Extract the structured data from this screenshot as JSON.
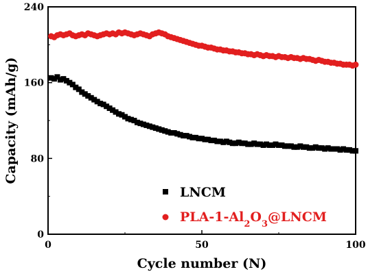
{
  "chart_data": {
    "type": "scatter",
    "xlabel": "Cycle number (N)",
    "ylabel": "Capacity (mAh/g)",
    "xlim": [
      0,
      100
    ],
    "ylim": [
      0,
      240
    ],
    "xticks": [
      "0",
      "50",
      "100"
    ],
    "yticks": [
      "0",
      "80",
      "160",
      "240"
    ],
    "grid": false,
    "legend_position": "bottom-right",
    "series": [
      {
        "name": "LNCM",
        "marker": "square",
        "color": "#000000",
        "x": [
          1,
          2,
          3,
          4,
          5,
          6,
          7,
          8,
          9,
          10,
          11,
          12,
          13,
          14,
          15,
          16,
          17,
          18,
          19,
          20,
          21,
          22,
          23,
          24,
          25,
          26,
          27,
          28,
          29,
          30,
          31,
          32,
          33,
          34,
          35,
          36,
          37,
          38,
          39,
          40,
          41,
          42,
          43,
          44,
          45,
          46,
          47,
          48,
          49,
          50,
          51,
          52,
          53,
          54,
          55,
          56,
          57,
          58,
          59,
          60,
          61,
          62,
          63,
          64,
          65,
          66,
          67,
          68,
          69,
          70,
          71,
          72,
          73,
          74,
          75,
          76,
          77,
          78,
          79,
          80,
          81,
          82,
          83,
          84,
          85,
          86,
          87,
          88,
          89,
          90,
          91,
          92,
          93,
          94,
          95,
          96,
          97,
          98,
          99,
          100
        ],
        "values": [
          165,
          164,
          166,
          163,
          164,
          162,
          160,
          158,
          155,
          153,
          150,
          148,
          146,
          144,
          142,
          140,
          138,
          137,
          135,
          133,
          131,
          129,
          127,
          126,
          124,
          122,
          121,
          120,
          118,
          117,
          116,
          115,
          114,
          113,
          112,
          111,
          110,
          109,
          108,
          107,
          107,
          106,
          105,
          104,
          104,
          103,
          102,
          102,
          101,
          101,
          100,
          100,
          99,
          99,
          98,
          98,
          97,
          98,
          97,
          96,
          96,
          97,
          96,
          96,
          95,
          95,
          96,
          95,
          95,
          94,
          95,
          94,
          94,
          95,
          94,
          94,
          93,
          93,
          93,
          92,
          92,
          93,
          92,
          92,
          91,
          91,
          92,
          91,
          91,
          90,
          91,
          90,
          90,
          90,
          89,
          90,
          89,
          89,
          88,
          88
        ]
      },
      {
        "name": "PLA-1-Al2O3@LNCM",
        "marker": "circle",
        "color": "#e21f1f",
        "x": [
          1,
          2,
          3,
          4,
          5,
          6,
          7,
          8,
          9,
          10,
          11,
          12,
          13,
          14,
          15,
          16,
          17,
          18,
          19,
          20,
          21,
          22,
          23,
          24,
          25,
          26,
          27,
          28,
          29,
          30,
          31,
          32,
          33,
          34,
          35,
          36,
          37,
          38,
          39,
          40,
          41,
          42,
          43,
          44,
          45,
          46,
          47,
          48,
          49,
          50,
          51,
          52,
          53,
          54,
          55,
          56,
          57,
          58,
          59,
          60,
          61,
          62,
          63,
          64,
          65,
          66,
          67,
          68,
          69,
          70,
          71,
          72,
          73,
          74,
          75,
          76,
          77,
          78,
          79,
          80,
          81,
          82,
          83,
          84,
          85,
          86,
          87,
          88,
          89,
          90,
          91,
          92,
          93,
          94,
          95,
          96,
          97,
          98,
          99,
          100
        ],
        "values": [
          209,
          208,
          210,
          211,
          210,
          211,
          212,
          210,
          209,
          210,
          211,
          210,
          212,
          211,
          210,
          209,
          210,
          211,
          212,
          211,
          212,
          211,
          213,
          212,
          213,
          212,
          211,
          210,
          211,
          212,
          211,
          210,
          209,
          211,
          212,
          213,
          212,
          211,
          209,
          208,
          207,
          206,
          205,
          204,
          203,
          202,
          201,
          200,
          199,
          199,
          198,
          197,
          197,
          196,
          195,
          195,
          194,
          194,
          193,
          193,
          192,
          192,
          191,
          191,
          190,
          190,
          189,
          190,
          189,
          188,
          189,
          188,
          188,
          187,
          188,
          187,
          187,
          186,
          187,
          186,
          186,
          185,
          186,
          185,
          185,
          184,
          183,
          184,
          183,
          182,
          182,
          181,
          181,
          180,
          180,
          179,
          179,
          179,
          178,
          179
        ]
      }
    ]
  }
}
